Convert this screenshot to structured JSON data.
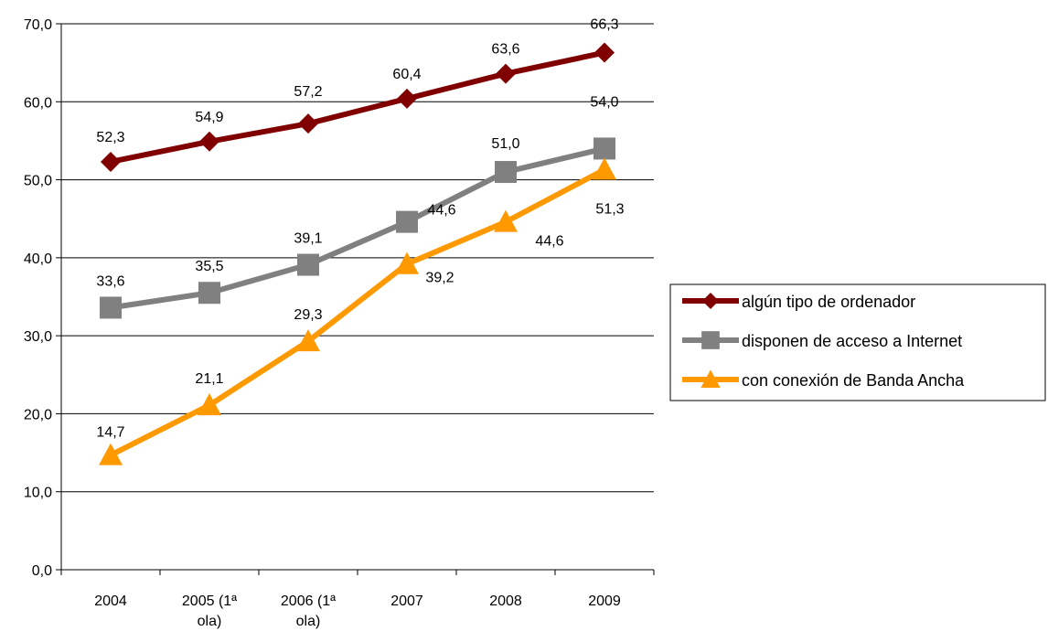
{
  "chart_data": {
    "type": "line",
    "title": "",
    "xlabel": "",
    "ylabel": "",
    "categories": [
      "2004",
      "2005 (1ª ola)",
      "2006 (1ª ola)",
      "2007",
      "2008",
      "2009"
    ],
    "ylim": [
      0,
      70
    ],
    "yticks": [
      "0,0",
      "10,0",
      "20,0",
      "30,0",
      "40,0",
      "50,0",
      "60,0",
      "70,0"
    ],
    "grid": true,
    "legend": "right",
    "series": [
      {
        "name": "algún tipo de ordenador",
        "values": [
          52.3,
          54.9,
          57.2,
          60.4,
          63.6,
          66.3
        ],
        "labels": [
          "52,3",
          "54,9",
          "57,2",
          "60,4",
          "63,6",
          "66,3"
        ],
        "color": "#800000",
        "marker": "diamond"
      },
      {
        "name": "disponen de acceso a Internet",
        "values": [
          33.6,
          35.5,
          39.1,
          44.6,
          51.0,
          54.0
        ],
        "labels": [
          "33,6",
          "35,5",
          "39,1",
          "44,6",
          "51,0",
          "54,0"
        ],
        "color": "#808080",
        "marker": "square"
      },
      {
        "name": "con conexión de Banda Ancha",
        "values": [
          14.7,
          21.1,
          29.3,
          39.2,
          44.6,
          51.3
        ],
        "labels": [
          "14,7",
          "21,1",
          "29,3",
          "39,2",
          "44,6",
          "51,3"
        ],
        "color": "#FF9900",
        "marker": "triangle"
      }
    ]
  }
}
